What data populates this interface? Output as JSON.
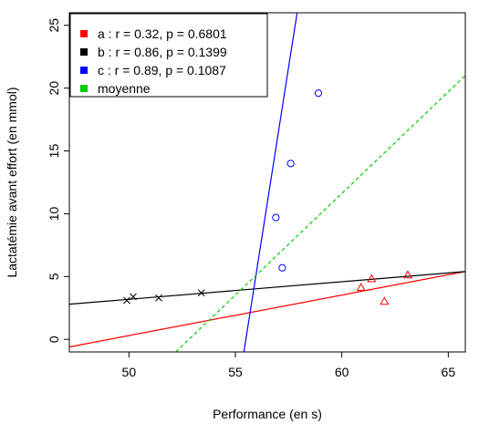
{
  "chart_data": {
    "type": "scatter",
    "title": "",
    "xlabel": "Performance (en s)",
    "ylabel": "Lactatémie avant effort (en mmol)",
    "xlim": [
      47.2,
      65.8
    ],
    "ylim": [
      -1.0,
      26.0
    ],
    "x_ticks": [
      50,
      55,
      60,
      65
    ],
    "y_ticks": [
      0,
      5,
      10,
      15,
      20,
      25
    ],
    "legend_position": "top-left",
    "series": [
      {
        "id": "a",
        "name": "a : r = 0.32, p = 0.6801",
        "color": "#ff0000",
        "marker": "triangle",
        "points": [
          {
            "x": 60.9,
            "y": 4.1
          },
          {
            "x": 61.4,
            "y": 4.8
          },
          {
            "x": 62.0,
            "y": 3.0
          },
          {
            "x": 63.1,
            "y": 5.1
          }
        ],
        "fit_line": {
          "y_at_xmin": -0.6,
          "y_at_xmax": 5.4
        }
      },
      {
        "id": "b",
        "name": "b : r = 0.86, p = 0.1399",
        "color": "#000000",
        "marker": "cross",
        "points": [
          {
            "x": 49.9,
            "y": 3.1
          },
          {
            "x": 50.2,
            "y": 3.4
          },
          {
            "x": 51.4,
            "y": 3.3
          },
          {
            "x": 53.4,
            "y": 3.7
          }
        ],
        "fit_line": {
          "y_at_xmin": 2.8,
          "y_at_xmax": 5.4
        }
      },
      {
        "id": "c",
        "name": "c : r = 0.89, p = 0.1087",
        "color": "#0000ff",
        "marker": "circle",
        "points": [
          {
            "x": 56.9,
            "y": 9.7
          },
          {
            "x": 57.2,
            "y": 5.7
          },
          {
            "x": 57.6,
            "y": 14.0
          },
          {
            "x": 58.9,
            "y": 19.6
          }
        ],
        "fit_line": {
          "x_at_ymin": 55.4,
          "x_at_ymax": 57.9
        }
      },
      {
        "id": "moyenne",
        "name": "moyenne",
        "color": "#00cc00",
        "marker": "none",
        "points": [],
        "fit_line": {
          "x_at_ymin": 52.2,
          "y_at_xmax": 21.0
        }
      }
    ]
  }
}
